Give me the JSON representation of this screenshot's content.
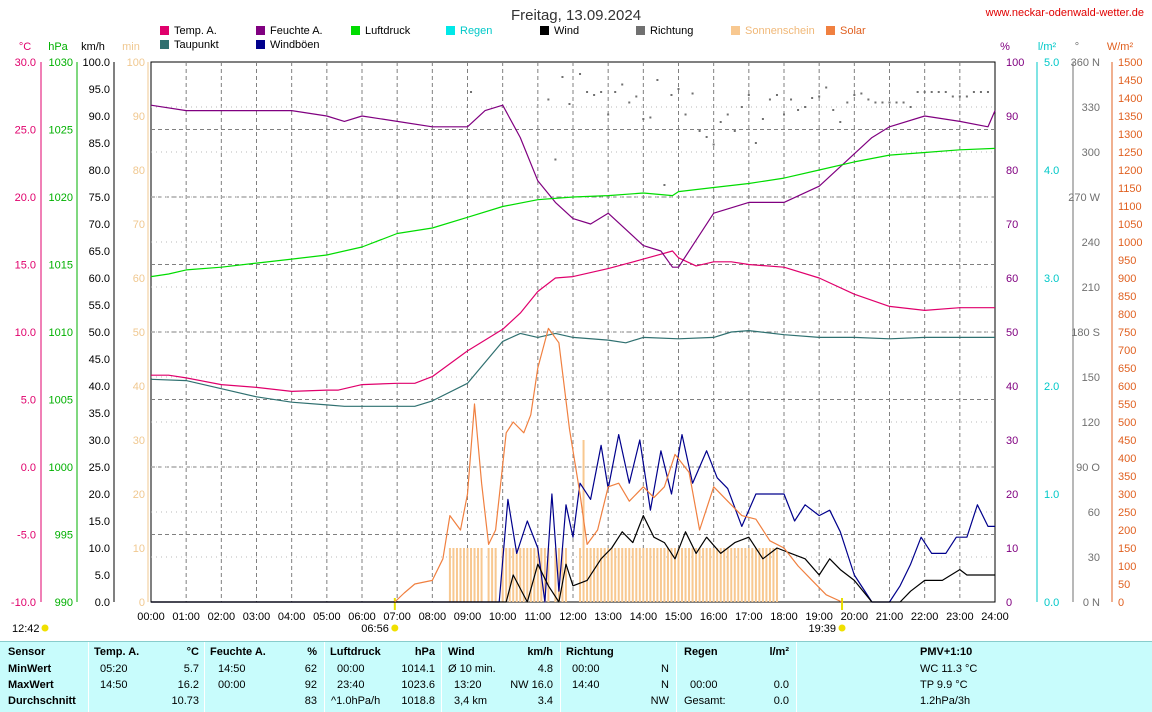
{
  "title": "Freitag, 13.09.2024",
  "site": "www.neckar-odenwald-wetter.de",
  "legend": [
    {
      "name": "Temp. A.",
      "color": "#e0006c"
    },
    {
      "name": "Taupunkt",
      "color": "#2f7070"
    },
    {
      "name": "Feuchte A.",
      "color": "#800080"
    },
    {
      "name": "Windböen",
      "color": "#00008c"
    },
    {
      "name": "Luftdruck",
      "color": "#00dc00"
    },
    {
      "name": "Regen",
      "color": "#00e8e8"
    },
    {
      "name": "Wind",
      "color": "#000000"
    },
    {
      "name": "Richtung",
      "color": "#707070"
    },
    {
      "name": "Sonnenschein",
      "color": "#f8c890"
    },
    {
      "name": "Solar",
      "color": "#f08040"
    }
  ],
  "axis_units": {
    "temp": "°C",
    "press": "hPa",
    "wind": "km/h",
    "sun": "min",
    "hum": "%",
    "rain": "l/m²",
    "dir": "°",
    "solar": "W/m²"
  },
  "sunrise": "06:56",
  "sunset": "19:39",
  "daylight": "12:42",
  "chart_data": {
    "type": "line",
    "x_labels": [
      "00:00",
      "01:00",
      "02:00",
      "03:00",
      "04:00",
      "05:00",
      "06:00",
      "07:00",
      "08:00",
      "09:00",
      "10:00",
      "11:00",
      "12:00",
      "13:00",
      "14:00",
      "15:00",
      "16:00",
      "17:00",
      "18:00",
      "19:00",
      "20:00",
      "21:00",
      "22:00",
      "23:00",
      "24:00"
    ],
    "axes": {
      "temp": {
        "min": -10,
        "max": 30,
        "ticks": [
          "30.0",
          "25.0",
          "20.0",
          "15.0",
          "10.0",
          "5.0",
          "0.0",
          "-5.0",
          "-10.0"
        ]
      },
      "press": {
        "min": 990,
        "max": 1030,
        "ticks": [
          "1030",
          "1025",
          "1020",
          "1015",
          "1010",
          "1005",
          "1000",
          "995",
          "990"
        ]
      },
      "wind": {
        "min": 0,
        "max": 100,
        "ticks": [
          "100.0",
          "95.0",
          "90.0",
          "85.0",
          "80.0",
          "75.0",
          "70.0",
          "65.0",
          "60.0",
          "55.0",
          "50.0",
          "45.0",
          "40.0",
          "35.0",
          "30.0",
          "25.0",
          "20.0",
          "15.0",
          "10.0",
          "5.0",
          "0.0"
        ]
      },
      "sun": {
        "min": 0,
        "max": 100,
        "ticks": [
          "100",
          "90",
          "80",
          "70",
          "60",
          "50",
          "40",
          "30",
          "20",
          "10",
          "0"
        ]
      },
      "hum": {
        "min": 0,
        "max": 100,
        "ticks": [
          "100",
          "90",
          "80",
          "70",
          "60",
          "50",
          "40",
          "30",
          "20",
          "10",
          "0"
        ]
      },
      "rain": {
        "min": 0,
        "max": 5,
        "ticks": [
          "5.0",
          "4.0",
          "3.0",
          "2.0",
          "1.0",
          "0.0"
        ]
      },
      "dir": {
        "min": 0,
        "max": 360,
        "ticks": [
          "360 N",
          "330",
          "300",
          "270 W",
          "240",
          "210",
          "180 S",
          "150",
          "120",
          "90 O",
          "60",
          "30",
          "0 N"
        ]
      },
      "solar": {
        "min": 0,
        "max": 1500,
        "ticks": [
          "1500",
          "1450",
          "1400",
          "1350",
          "1300",
          "1250",
          "1200",
          "1150",
          "1100",
          "1050",
          "1000",
          "950",
          "900",
          "850",
          "800",
          "750",
          "700",
          "650",
          "600",
          "550",
          "500",
          "450",
          "400",
          "350",
          "300",
          "250",
          "200",
          "150",
          "100",
          "50",
          "0"
        ]
      }
    },
    "series": [
      {
        "name": "Temp. A.",
        "axis": "temp",
        "color": "#e0006c",
        "x": [
          0,
          0.5,
          1,
          2,
          3,
          4,
          5,
          5.33,
          6,
          7,
          7.5,
          8,
          9,
          10,
          10.5,
          11,
          11.5,
          12,
          13,
          14,
          14.83,
          15,
          15.5,
          16,
          16.5,
          17,
          18,
          19,
          20,
          21,
          22,
          23,
          24
        ],
        "y": [
          6.8,
          6.8,
          6.6,
          6.1,
          5.9,
          5.6,
          5.7,
          5.7,
          6.1,
          6.2,
          6.2,
          6.7,
          8.6,
          10.2,
          11.4,
          13.0,
          14.0,
          14.1,
          14.7,
          15.4,
          16.0,
          15.5,
          14.9,
          15.2,
          15.2,
          15.0,
          14.8,
          14.0,
          12.8,
          11.9,
          11.6,
          11.8,
          11.8
        ]
      },
      {
        "name": "Taupunkt",
        "axis": "temp",
        "color": "#2f7070",
        "x": [
          0,
          1,
          2,
          3,
          4,
          5,
          5.5,
          6,
          7,
          7.5,
          8,
          9,
          10,
          10.5,
          11,
          11.5,
          12,
          13,
          13.5,
          14,
          15,
          16,
          16.5,
          17,
          18,
          19,
          20,
          21,
          22,
          23,
          24
        ],
        "y": [
          6.5,
          6.4,
          5.8,
          5.2,
          4.8,
          4.6,
          4.5,
          4.5,
          4.5,
          4.5,
          4.9,
          6.2,
          9.3,
          9.9,
          9.6,
          9.9,
          9.6,
          9.4,
          9.2,
          9.6,
          9.5,
          9.6,
          10.0,
          10.1,
          9.8,
          9.6,
          9.6,
          9.5,
          9.6,
          9.6,
          9.6
        ]
      },
      {
        "name": "Feuchte A.",
        "axis": "hum",
        "color": "#800080",
        "x": [
          0,
          1,
          2,
          3,
          4,
          5,
          5.5,
          6,
          7,
          8,
          9,
          9.5,
          10,
          10.5,
          11,
          11.5,
          12,
          12.5,
          13,
          14,
          14.5,
          14.83,
          15,
          15.5,
          16,
          16.5,
          17,
          18,
          19,
          20,
          20.5,
          21,
          22,
          23,
          23.8,
          24
        ],
        "y": [
          92,
          91,
          91,
          91,
          91,
          90,
          89,
          90,
          89,
          88,
          88,
          91,
          92,
          86,
          78,
          74,
          71,
          70,
          72,
          66,
          65,
          62,
          62,
          67,
          72,
          73,
          74,
          74,
          77,
          83,
          86,
          88,
          90,
          89,
          88,
          91
        ]
      },
      {
        "name": "Luftdruck",
        "axis": "press",
        "color": "#00dc00",
        "x": [
          0,
          0.5,
          1,
          2,
          3,
          4,
          5,
          6,
          7,
          8,
          9,
          10,
          11,
          12,
          13,
          14,
          14.83,
          15,
          16,
          17,
          18,
          19,
          20,
          21,
          22,
          23,
          24
        ],
        "y": [
          1014.1,
          1014.3,
          1014.6,
          1014.8,
          1015.1,
          1015.4,
          1015.7,
          1016.3,
          1017.3,
          1017.7,
          1018.5,
          1019.3,
          1019.8,
          1020.0,
          1020.1,
          1020.3,
          1020.1,
          1020.4,
          1020.7,
          1021.0,
          1021.4,
          1022.0,
          1022.6,
          1023.1,
          1023.3,
          1023.5,
          1023.6
        ]
      },
      {
        "name": "Windböen",
        "axis": "wind",
        "color": "#00008c",
        "x": [
          0,
          9.9,
          10.15,
          10.4,
          10.7,
          11,
          11.2,
          11.4,
          11.6,
          11.8,
          12,
          12.2,
          12.5,
          12.8,
          13,
          13.3,
          13.6,
          13.9,
          14.2,
          14.5,
          14.8,
          15.1,
          15.4,
          15.8,
          16.1,
          16.4,
          16.8,
          17.2,
          17.6,
          18,
          18.3,
          18.6,
          19,
          19.3,
          19.6,
          20,
          20.5,
          21,
          21.3,
          21.6,
          21.9,
          22.2,
          22.6,
          22.9,
          23.2,
          23.5,
          23.8,
          24
        ],
        "y": [
          0,
          0,
          19,
          9,
          15,
          10,
          0,
          20,
          2,
          18,
          12,
          22,
          19,
          29,
          21,
          31,
          22,
          30,
          17,
          28,
          20,
          31,
          22,
          28,
          23,
          21,
          14,
          20,
          20,
          20,
          15,
          18,
          16,
          17,
          13,
          5,
          0,
          0,
          3,
          7,
          12,
          9,
          9,
          12,
          12,
          18,
          14,
          14
        ]
      },
      {
        "name": "Wind",
        "axis": "wind",
        "color": "#000000",
        "x": [
          0,
          10.1,
          10.3,
          10.7,
          11,
          11.3,
          11.6,
          11.8,
          12,
          12.4,
          12.8,
          13.1,
          13.4,
          13.7,
          14,
          14.3,
          14.6,
          14.9,
          15.2,
          15.5,
          15.8,
          16.2,
          16.6,
          17,
          17.4,
          17.8,
          18.2,
          18.6,
          19,
          19.3,
          19.6,
          20,
          20.5,
          21,
          21.3,
          21.6,
          22,
          22.5,
          23,
          23.2,
          23.5,
          24
        ],
        "y": [
          0,
          0,
          5,
          0,
          7,
          3,
          0,
          7,
          3,
          4,
          8,
          10,
          13,
          11,
          16,
          12,
          11,
          8,
          13,
          9,
          12,
          9,
          11,
          12,
          8,
          10,
          9,
          8,
          5,
          8,
          6,
          4,
          0,
          0,
          0,
          2,
          4,
          4,
          6,
          5,
          5,
          5
        ]
      },
      {
        "name": "Solar",
        "axis": "solar",
        "color": "#f08040",
        "x": [
          6.93,
          7.2,
          7.5,
          8,
          8.3,
          8.5,
          8.8,
          9,
          9.2,
          9.4,
          9.6,
          9.8,
          10.1,
          10.3,
          10.6,
          10.8,
          11,
          11.3,
          11.6,
          11.9,
          12.2,
          12.4,
          12.7,
          13,
          13.3,
          13.6,
          14,
          14.3,
          14.6,
          14.9,
          15.3,
          15.6,
          16,
          16.4,
          16.8,
          17.2,
          17.6,
          18,
          18.4,
          18.8,
          19.2,
          19.65
        ],
        "y": [
          0,
          25,
          50,
          60,
          120,
          240,
          200,
          300,
          550,
          330,
          160,
          200,
          470,
          500,
          470,
          520,
          650,
          760,
          720,
          480,
          300,
          160,
          200,
          320,
          330,
          280,
          320,
          290,
          320,
          410,
          360,
          200,
          320,
          280,
          240,
          230,
          170,
          150,
          100,
          60,
          20,
          0
        ]
      }
    ],
    "sunshine": {
      "axis": "sun",
      "color": "#f8c890",
      "x": [
        8.5,
        8.6,
        8.7,
        8.8,
        8.9,
        9.0,
        9.1,
        9.2,
        9.3,
        9.4,
        9.6,
        9.7,
        9.8,
        10.0,
        10.1,
        10.2,
        10.3,
        10.4,
        10.5,
        10.6,
        10.7,
        10.8,
        10.9,
        11.0,
        11.1,
        11.2,
        11.3,
        11.5,
        11.6,
        11.7,
        11.8,
        12.2,
        12.3,
        12.4,
        12.5,
        12.6,
        12.7,
        12.8,
        12.9,
        13.0,
        13.1,
        13.2,
        13.3,
        13.4,
        13.5,
        13.6,
        13.7,
        13.8,
        13.9,
        14.0,
        14.1,
        14.2,
        14.3,
        14.4,
        14.5,
        14.6,
        14.7,
        14.8,
        14.9,
        15.0,
        15.1,
        15.2,
        15.3,
        15.4,
        15.5,
        15.6,
        15.7,
        15.8,
        15.9,
        16.0,
        16.1,
        16.2,
        16.3,
        16.4,
        16.5,
        16.6,
        16.7,
        16.8,
        16.9,
        17.0,
        17.1,
        17.2,
        17.3,
        17.4,
        17.5,
        17.6,
        17.7,
        17.8
      ],
      "y": [
        10,
        10,
        10,
        10,
        10,
        10,
        10,
        10,
        10,
        10,
        10,
        10,
        10,
        10,
        10,
        10,
        10,
        10,
        10,
        10,
        10,
        10,
        10,
        10,
        10,
        10,
        10,
        10,
        10,
        10,
        10,
        10,
        30,
        10,
        10,
        10,
        10,
        10,
        10,
        10,
        10,
        10,
        10,
        10,
        10,
        10,
        10,
        10,
        10,
        10,
        10,
        10,
        10,
        10,
        10,
        10,
        10,
        10,
        10,
        10,
        10,
        10,
        10,
        10,
        10,
        10,
        10,
        10,
        10,
        10,
        10,
        10,
        10,
        10,
        10,
        10,
        10,
        10,
        10,
        10,
        10,
        10,
        10,
        10,
        10,
        10,
        10,
        10
      ]
    },
    "direction": {
      "axis": "dir",
      "color": "#707070",
      "x": [
        9.1,
        11.3,
        11.5,
        11.7,
        11.9,
        12.2,
        12.4,
        12.6,
        12.8,
        13.0,
        13.2,
        13.4,
        13.6,
        13.8,
        14.0,
        14.2,
        14.4,
        14.6,
        14.8,
        15.0,
        15.2,
        15.4,
        15.6,
        15.8,
        16.0,
        16.2,
        16.4,
        16.6,
        16.8,
        17.0,
        17.2,
        17.4,
        17.6,
        17.8,
        18.0,
        18.2,
        18.4,
        18.6,
        18.8,
        19.0,
        19.2,
        19.4,
        19.6,
        19.8,
        20.0,
        20.2,
        20.4,
        20.6,
        20.8,
        21.0,
        21.2,
        21.4,
        21.6,
        21.8,
        22.0,
        22.2,
        22.4,
        22.6,
        22.8,
        23.0,
        23.2,
        23.4,
        23.6,
        23.8
      ],
      "y": [
        340,
        335,
        295,
        350,
        332,
        352,
        340,
        338,
        340,
        325,
        340,
        345,
        333,
        337,
        322,
        323,
        348,
        278,
        338,
        342,
        325,
        339,
        314,
        310,
        305,
        320,
        325,
        314,
        330,
        338,
        306,
        322,
        335,
        338,
        325,
        335,
        328,
        330,
        336,
        337,
        343,
        328,
        320,
        333,
        338,
        339,
        335,
        333,
        333,
        333,
        333,
        333,
        330,
        340,
        340,
        340,
        340,
        340,
        337,
        337,
        337,
        340,
        340,
        340
      ]
    }
  },
  "summary": {
    "sensor_col": {
      "header": "Sensor",
      "rows": [
        "MinWert",
        "MaxWert",
        "Durchschnitt"
      ]
    },
    "temp": {
      "header": "Temp. A.",
      "unit": "°C",
      "t1": "05:20",
      "v1": "5.7",
      "t2": "14:50",
      "v2": "16.2",
      "t3": "",
      "v3": "10.73"
    },
    "hum": {
      "header": "Feuchte A.",
      "unit": "%",
      "t1": "14:50",
      "v1": "62",
      "t2": "00:00",
      "v2": "92",
      "t3": "",
      "v3": "83"
    },
    "press": {
      "header": "Luftdruck",
      "unit": "hPa",
      "t1": "00:00",
      "v1": "1014.1",
      "t2": "23:40",
      "v2": "1023.6",
      "t3": "^1.0hPa/h",
      "v3": "1018.8"
    },
    "wind": {
      "header": "Wind",
      "unit": "km/h",
      "t1": "Ø 10 min.",
      "v1": "4.8",
      "t2": "13:20",
      "v2": "NW 16.0",
      "t3": "3,4 km",
      "v3": "3.4"
    },
    "dir": {
      "header": "Richtung",
      "t1": "00:00",
      "v1": "N",
      "t2": "14:40",
      "v2": "N",
      "v3": "NW"
    },
    "rain": {
      "header": "Regen",
      "unit": "l/m²",
      "t1": "",
      "v1": "",
      "t2": "00:00",
      "v2": "0.0",
      "t3": "Gesamt:",
      "v3": "0.0"
    },
    "pmv": {
      "header": "PMV+1:10",
      "r1": "WC 11.3 °C",
      "r2": "TP 9.9 °C",
      "r3": "1.2hPa/3h"
    }
  }
}
